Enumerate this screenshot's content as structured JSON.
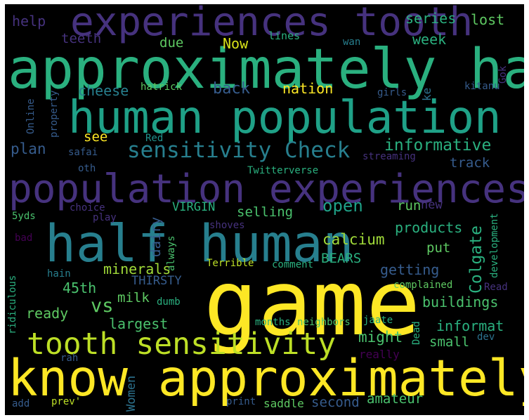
{
  "colors": {
    "background": "#000000",
    "yellow": "#fde725",
    "lime": "#a0da39",
    "green": "#4ac16d",
    "teal": "#1fa187",
    "cyan": "#277f8e",
    "blue": "#365c8d",
    "indigo": "#46327e",
    "purple": "#440154"
  },
  "words": {
    "experiences_tooth": "experiences tooth",
    "approximately_half": "approximately half",
    "human_population": "human population",
    "sensitivity_check": "sensitivity Check",
    "population_experiences": "population experiences",
    "half_human": "half human",
    "game": "game",
    "tooth_sensitivity": "tooth sensitivity",
    "know_approximately": "know approximately",
    "help": "help",
    "teeth": "teeth",
    "due": "due",
    "now": "Now",
    "series": "series",
    "lost": "lost",
    "week": "week",
    "lines": "lines",
    "wan": "wan",
    "gok": "Gok",
    "cheese": "cheese",
    "hatrick": "hatrick",
    "back": "back",
    "nation": "nation",
    "kitanu": "kitanu",
    "ke": "ke",
    "girls": "girls",
    "online": "Online",
    "property": "property",
    "see": "see",
    "red": "Red",
    "informative": "informative",
    "plan": "plan",
    "safai": "safai",
    "streaming": "streaming",
    "track": "track",
    "oth": "oth",
    "twitterverse": "Twitterverse",
    "virgin": "VIRGIN",
    "selling": "selling",
    "open": "open",
    "run": "run",
    "new": "new",
    "choice": "choice",
    "play": "play",
    "five_yds": "5yds",
    "dairy": "dairy",
    "always": "always",
    "shoves": "shoves",
    "calcium": "calcium",
    "products": "products",
    "colgate": "Colgate",
    "development": "development",
    "bad": "bad",
    "put": "put",
    "minerals": "minerals",
    "bears": "BEARS",
    "terrible": "Terrible",
    "comment": "comment",
    "hain": "hain",
    "getting": "getting",
    "forty_fifth": "45th",
    "thirsty": "THIRSTY",
    "complained": "complained",
    "read": "Read",
    "ridiculous": "ridiculous",
    "vs": "vs",
    "milk": "milk",
    "dumb": "dumb",
    "buildings": "buildings",
    "ready": "ready",
    "largest": "largest",
    "months": "months",
    "neighbors": "neighbors",
    "jaate": "jaate",
    "dead": "Dead",
    "informat": "informat",
    "might": "might",
    "small": "small",
    "dev": "dev",
    "rah": "rah",
    "women": "Women",
    "really": "really",
    "add": "add",
    "prev": "prev'",
    "print": "print",
    "saddle": "saddle",
    "second": "second",
    "amateur": "amateur"
  }
}
